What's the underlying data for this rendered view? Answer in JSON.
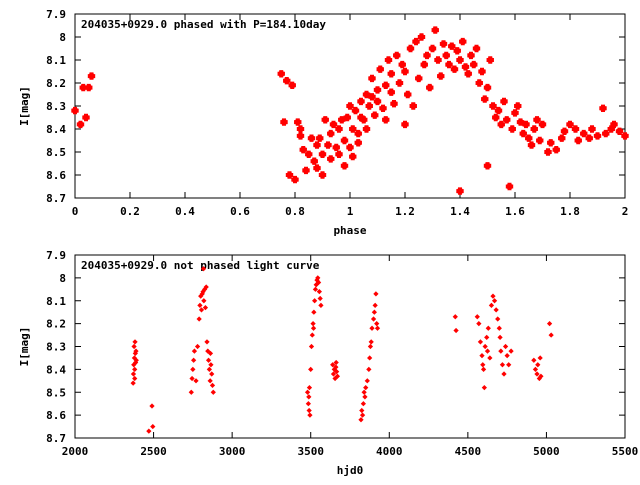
{
  "chart_data": [
    {
      "type": "scatter",
      "title": "204035+0929.0 phased with P=184.10day",
      "xlabel": "phase",
      "ylabel": "I[mag]",
      "xlim": [
        0,
        2
      ],
      "ylim": [
        7.9,
        8.7
      ],
      "y_inverted": true,
      "x_ticks": [
        "0",
        "0.2",
        "0.4",
        "0.6",
        "0.8",
        "1",
        "1.2",
        "1.4",
        "1.6",
        "1.8",
        "2"
      ],
      "y_ticks": [
        "7.9",
        "8",
        "8.1",
        "8.2",
        "8.3",
        "8.4",
        "8.5",
        "8.6",
        "8.7"
      ],
      "marker_color": "#ff0000",
      "marker": "filled-cross",
      "series": [
        {
          "points": [
            [
              0.0,
              8.32
            ],
            [
              0.02,
              8.38
            ],
            [
              0.03,
              8.22
            ],
            [
              0.04,
              8.35
            ],
            [
              0.05,
              8.22
            ],
            [
              0.06,
              8.17
            ],
            [
              0.75,
              8.16
            ],
            [
              0.76,
              8.37
            ],
            [
              0.77,
              8.19
            ],
            [
              0.78,
              8.6
            ],
            [
              0.79,
              8.21
            ],
            [
              0.8,
              8.62
            ],
            [
              0.81,
              8.37
            ],
            [
              0.82,
              8.4
            ],
            [
              0.82,
              8.43
            ],
            [
              0.83,
              8.49
            ],
            [
              0.84,
              8.58
            ],
            [
              0.85,
              8.51
            ],
            [
              0.86,
              8.44
            ],
            [
              0.87,
              8.54
            ],
            [
              0.88,
              8.47
            ],
            [
              0.88,
              8.57
            ],
            [
              0.89,
              8.44
            ],
            [
              0.9,
              8.51
            ],
            [
              0.9,
              8.6
            ],
            [
              0.91,
              8.36
            ],
            [
              0.92,
              8.47
            ],
            [
              0.93,
              8.42
            ],
            [
              0.93,
              8.53
            ],
            [
              0.94,
              8.38
            ],
            [
              0.95,
              8.48
            ],
            [
              0.96,
              8.4
            ],
            [
              0.96,
              8.51
            ],
            [
              0.97,
              8.36
            ],
            [
              0.98,
              8.45
            ],
            [
              0.98,
              8.56
            ],
            [
              0.99,
              8.35
            ],
            [
              1.0,
              8.3
            ],
            [
              1.0,
              8.48
            ],
            [
              1.01,
              8.4
            ],
            [
              1.01,
              8.52
            ],
            [
              1.02,
              8.32
            ],
            [
              1.03,
              8.42
            ],
            [
              1.03,
              8.46
            ],
            [
              1.04,
              8.35
            ],
            [
              1.04,
              8.28
            ],
            [
              1.05,
              8.36
            ],
            [
              1.06,
              8.25
            ],
            [
              1.06,
              8.4
            ],
            [
              1.07,
              8.3
            ],
            [
              1.08,
              8.26
            ],
            [
              1.08,
              8.18
            ],
            [
              1.09,
              8.34
            ],
            [
              1.1,
              8.23
            ],
            [
              1.1,
              8.28
            ],
            [
              1.11,
              8.14
            ],
            [
              1.12,
              8.31
            ],
            [
              1.13,
              8.21
            ],
            [
              1.13,
              8.36
            ],
            [
              1.14,
              8.1
            ],
            [
              1.15,
              8.24
            ],
            [
              1.15,
              8.16
            ],
            [
              1.16,
              8.29
            ],
            [
              1.17,
              8.08
            ],
            [
              1.18,
              8.2
            ],
            [
              1.19,
              8.12
            ],
            [
              1.2,
              8.15
            ],
            [
              1.2,
              8.38
            ],
            [
              1.21,
              8.25
            ],
            [
              1.22,
              8.05
            ],
            [
              1.23,
              8.3
            ],
            [
              1.24,
              8.02
            ],
            [
              1.25,
              8.18
            ],
            [
              1.26,
              8.0
            ],
            [
              1.27,
              8.12
            ],
            [
              1.28,
              8.08
            ],
            [
              1.29,
              8.22
            ],
            [
              1.3,
              8.05
            ],
            [
              1.31,
              7.97
            ],
            [
              1.32,
              8.1
            ],
            [
              1.33,
              8.17
            ],
            [
              1.34,
              8.03
            ],
            [
              1.35,
              8.08
            ],
            [
              1.36,
              8.12
            ],
            [
              1.37,
              8.04
            ],
            [
              1.38,
              8.14
            ],
            [
              1.39,
              8.06
            ],
            [
              1.4,
              8.1
            ],
            [
              1.4,
              8.67
            ],
            [
              1.41,
              8.02
            ],
            [
              1.42,
              8.13
            ],
            [
              1.43,
              8.16
            ],
            [
              1.44,
              8.08
            ],
            [
              1.45,
              8.12
            ],
            [
              1.46,
              8.05
            ],
            [
              1.47,
              8.2
            ],
            [
              1.48,
              8.15
            ],
            [
              1.49,
              8.27
            ],
            [
              1.5,
              8.22
            ],
            [
              1.5,
              8.56
            ],
            [
              1.51,
              8.1
            ],
            [
              1.52,
              8.3
            ],
            [
              1.53,
              8.35
            ],
            [
              1.54,
              8.32
            ],
            [
              1.55,
              8.38
            ],
            [
              1.56,
              8.28
            ],
            [
              1.57,
              8.36
            ],
            [
              1.58,
              8.65
            ],
            [
              1.59,
              8.4
            ],
            [
              1.6,
              8.33
            ],
            [
              1.61,
              8.3
            ],
            [
              1.62,
              8.37
            ],
            [
              1.63,
              8.42
            ],
            [
              1.64,
              8.38
            ],
            [
              1.65,
              8.44
            ],
            [
              1.66,
              8.47
            ],
            [
              1.67,
              8.4
            ],
            [
              1.68,
              8.36
            ],
            [
              1.69,
              8.45
            ],
            [
              1.7,
              8.38
            ],
            [
              1.72,
              8.5
            ],
            [
              1.73,
              8.46
            ],
            [
              1.75,
              8.49
            ],
            [
              1.77,
              8.44
            ],
            [
              1.78,
              8.41
            ],
            [
              1.8,
              8.38
            ],
            [
              1.82,
              8.4
            ],
            [
              1.83,
              8.45
            ],
            [
              1.85,
              8.42
            ],
            [
              1.87,
              8.44
            ],
            [
              1.88,
              8.4
            ],
            [
              1.9,
              8.43
            ],
            [
              1.92,
              8.31
            ],
            [
              1.93,
              8.42
            ],
            [
              1.95,
              8.4
            ],
            [
              1.96,
              8.38
            ],
            [
              1.98,
              8.41
            ],
            [
              2.0,
              8.43
            ]
          ]
        }
      ]
    },
    {
      "type": "scatter",
      "title": "204035+0929.0 not phased light curve",
      "xlabel": "hjd0",
      "ylabel": "I[mag]",
      "xlim": [
        2000,
        5500
      ],
      "ylim": [
        7.9,
        8.7
      ],
      "y_inverted": true,
      "x_ticks": [
        "2000",
        "2500",
        "3000",
        "3500",
        "4000",
        "4500",
        "5000",
        "5500"
      ],
      "y_ticks": [
        "7.9",
        "8",
        "8.1",
        "8.2",
        "8.3",
        "8.4",
        "8.5",
        "8.6",
        "8.7"
      ],
      "marker_color": "#ff0000",
      "marker": "small-diamond",
      "series": [
        {
          "points": [
            [
              2370,
              8.46
            ],
            [
              2372,
              8.42
            ],
            [
              2374,
              8.38
            ],
            [
              2376,
              8.3
            ],
            [
              2378,
              8.35
            ],
            [
              2380,
              8.4
            ],
            [
              2382,
              8.28
            ],
            [
              2384,
              8.33
            ],
            [
              2386,
              8.37
            ],
            [
              2388,
              8.32
            ],
            [
              2390,
              8.36
            ],
            [
              2380,
              8.44
            ],
            [
              2470,
              8.67
            ],
            [
              2490,
              8.56
            ],
            [
              2495,
              8.65
            ],
            [
              2740,
              8.5
            ],
            [
              2745,
              8.44
            ],
            [
              2750,
              8.4
            ],
            [
              2755,
              8.36
            ],
            [
              2760,
              8.32
            ],
            [
              2770,
              8.45
            ],
            [
              2780,
              8.3
            ],
            [
              2790,
              8.18
            ],
            [
              2795,
              8.12
            ],
            [
              2800,
              8.08
            ],
            [
              2805,
              8.14
            ],
            [
              2810,
              8.07
            ],
            [
              2815,
              8.06
            ],
            [
              2820,
              8.1
            ],
            [
              2825,
              8.05
            ],
            [
              2830,
              8.13
            ],
            [
              2835,
              8.04
            ],
            [
              2818,
              7.96
            ],
            [
              2840,
              8.28
            ],
            [
              2845,
              8.32
            ],
            [
              2850,
              8.36
            ],
            [
              2855,
              8.4
            ],
            [
              2860,
              8.45
            ],
            [
              2865,
              8.38
            ],
            [
              2870,
              8.42
            ],
            [
              2875,
              8.47
            ],
            [
              2880,
              8.5
            ],
            [
              2862,
              8.33
            ],
            [
              3480,
              8.5
            ],
            [
              3485,
              8.55
            ],
            [
              3490,
              8.58
            ],
            [
              3495,
              8.6
            ],
            [
              3488,
              8.52
            ],
            [
              3492,
              8.48
            ],
            [
              3500,
              8.4
            ],
            [
              3505,
              8.3
            ],
            [
              3510,
              8.25
            ],
            [
              3515,
              8.2
            ],
            [
              3520,
              8.15
            ],
            [
              3518,
              8.22
            ],
            [
              3525,
              8.1
            ],
            [
              3530,
              8.05
            ],
            [
              3535,
              8.03
            ],
            [
              3540,
              8.01
            ],
            [
              3545,
              8.0
            ],
            [
              3550,
              8.02
            ],
            [
              3555,
              8.06
            ],
            [
              3560,
              8.09
            ],
            [
              3565,
              8.12
            ],
            [
              3640,
              8.38
            ],
            [
              3645,
              8.42
            ],
            [
              3650,
              8.4
            ],
            [
              3655,
              8.44
            ],
            [
              3660,
              8.39
            ],
            [
              3665,
              8.41
            ],
            [
              3670,
              8.43
            ],
            [
              3662,
              8.37
            ],
            [
              3820,
              8.62
            ],
            [
              3825,
              8.58
            ],
            [
              3830,
              8.6
            ],
            [
              3835,
              8.55
            ],
            [
              3840,
              8.5
            ],
            [
              3845,
              8.52
            ],
            [
              3850,
              8.48
            ],
            [
              3860,
              8.45
            ],
            [
              3870,
              8.4
            ],
            [
              3875,
              8.35
            ],
            [
              3880,
              8.3
            ],
            [
              3885,
              8.28
            ],
            [
              3890,
              8.22
            ],
            [
              3900,
              8.18
            ],
            [
              3905,
              8.15
            ],
            [
              3910,
              8.12
            ],
            [
              3915,
              8.07
            ],
            [
              3920,
              8.2
            ],
            [
              3925,
              8.22
            ],
            [
              4420,
              8.17
            ],
            [
              4425,
              8.23
            ],
            [
              4560,
              8.17
            ],
            [
              4570,
              8.2
            ],
            [
              4580,
              8.28
            ],
            [
              4590,
              8.34
            ],
            [
              4595,
              8.38
            ],
            [
              4600,
              8.4
            ],
            [
              4605,
              8.48
            ],
            [
              4610,
              8.3
            ],
            [
              4620,
              8.26
            ],
            [
              4625,
              8.32
            ],
            [
              4630,
              8.22
            ],
            [
              4640,
              8.35
            ],
            [
              4650,
              8.12
            ],
            [
              4660,
              8.08
            ],
            [
              4670,
              8.1
            ],
            [
              4680,
              8.14
            ],
            [
              4690,
              8.18
            ],
            [
              4700,
              8.22
            ],
            [
              4705,
              8.26
            ],
            [
              4710,
              8.32
            ],
            [
              4720,
              8.38
            ],
            [
              4730,
              8.42
            ],
            [
              4740,
              8.3
            ],
            [
              4750,
              8.34
            ],
            [
              4760,
              8.38
            ],
            [
              4775,
              8.32
            ],
            [
              4920,
              8.36
            ],
            [
              4930,
              8.4
            ],
            [
              4940,
              8.42
            ],
            [
              4945,
              8.38
            ],
            [
              4955,
              8.44
            ],
            [
              4960,
              8.35
            ],
            [
              4965,
              8.43
            ],
            [
              5020,
              8.2
            ],
            [
              5030,
              8.25
            ]
          ]
        }
      ]
    }
  ]
}
